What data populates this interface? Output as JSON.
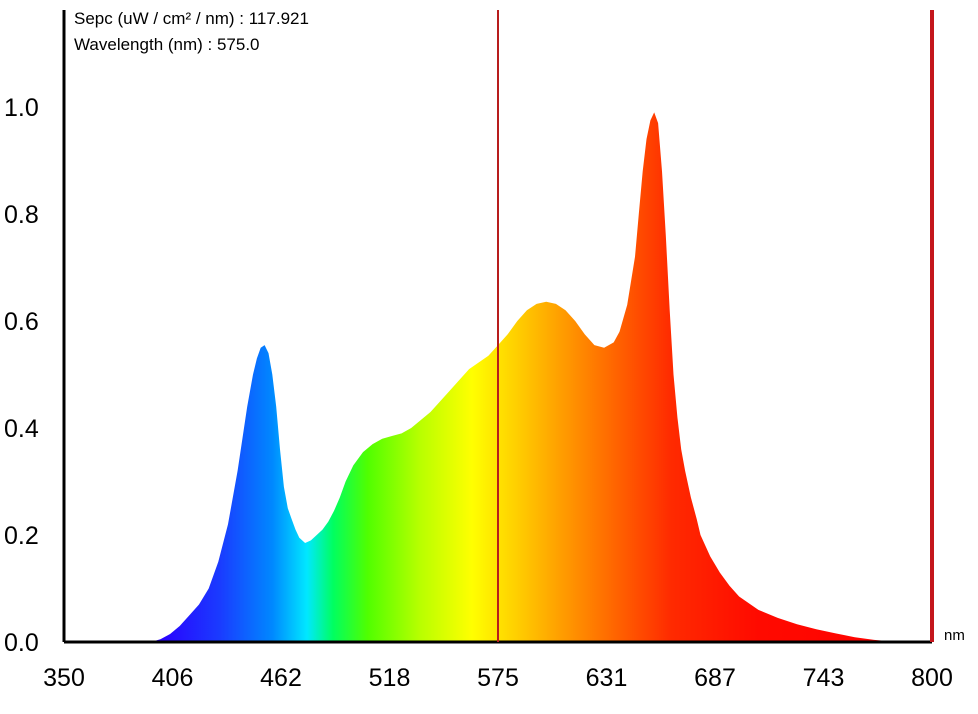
{
  "readout": {
    "spec_label": "Sepc (uW / cm² / nm) : 117.921",
    "wavelength_label": "Wavelength (nm) : 575.0"
  },
  "chart_data": {
    "type": "area",
    "x_unit": "nm",
    "xlim": [
      350,
      800
    ],
    "ylim": [
      0,
      1.15
    ],
    "x_ticks": [
      "350",
      "406",
      "462",
      "518",
      "575",
      "631",
      "687",
      "743",
      "800"
    ],
    "y_ticks": [
      "0.0",
      "0.2",
      "0.4",
      "0.6",
      "0.8",
      "1.0"
    ],
    "cursor_wavelength": 575.0,
    "end_marker_wavelength": 800,
    "series": [
      {
        "x": [
          350,
          395,
          400,
          405,
          410,
          415,
          420,
          425,
          430,
          435,
          440,
          445,
          448,
          450,
          452,
          454,
          456,
          458,
          460,
          462,
          464,
          466,
          468,
          470,
          472,
          475,
          478,
          481,
          484,
          487,
          490,
          493,
          496,
          500,
          505,
          510,
          515,
          520,
          525,
          530,
          540,
          550,
          560,
          570,
          575,
          580,
          585,
          590,
          595,
          600,
          605,
          610,
          615,
          620,
          625,
          630,
          635,
          638,
          642,
          646,
          648,
          650,
          652,
          654,
          656,
          658,
          660,
          662,
          664,
          666,
          668,
          670,
          672,
          675,
          678,
          680,
          685,
          690,
          695,
          700,
          710,
          720,
          730,
          740,
          750,
          760,
          770,
          780,
          790,
          800
        ],
        "y": [
          0.0,
          0.0,
          0.005,
          0.015,
          0.03,
          0.05,
          0.07,
          0.1,
          0.15,
          0.22,
          0.32,
          0.44,
          0.5,
          0.53,
          0.55,
          0.555,
          0.54,
          0.5,
          0.44,
          0.36,
          0.29,
          0.25,
          0.23,
          0.21,
          0.195,
          0.185,
          0.19,
          0.2,
          0.21,
          0.225,
          0.245,
          0.27,
          0.3,
          0.33,
          0.355,
          0.37,
          0.38,
          0.385,
          0.39,
          0.4,
          0.43,
          0.47,
          0.51,
          0.535,
          0.555,
          0.575,
          0.6,
          0.62,
          0.632,
          0.636,
          0.632,
          0.62,
          0.6,
          0.575,
          0.555,
          0.55,
          0.56,
          0.58,
          0.63,
          0.72,
          0.8,
          0.88,
          0.94,
          0.975,
          0.99,
          0.97,
          0.88,
          0.76,
          0.62,
          0.5,
          0.42,
          0.36,
          0.32,
          0.27,
          0.23,
          0.2,
          0.16,
          0.13,
          0.105,
          0.085,
          0.06,
          0.045,
          0.033,
          0.024,
          0.016,
          0.009,
          0.004,
          0.001,
          0.0,
          0.0
        ]
      }
    ]
  },
  "colors": {
    "cursor_line": "#b81d1d",
    "end_marker": "#c4161c",
    "axis": "#000000"
  }
}
